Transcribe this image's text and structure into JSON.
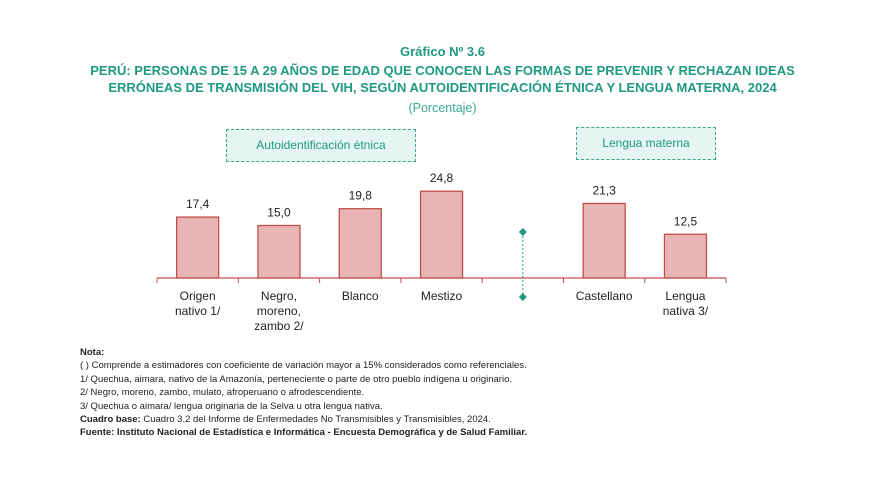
{
  "title": "Gráfico Nº 3.6",
  "subtitle_lines": [
    "PERÚ: PERSONAS DE 15 A 29 AÑOS DE EDAD QUE CONOCEN LAS FORMAS DE PREVENIR Y RECHAZAN IDEAS",
    "ERRÓNEAS DE TRANSMISIÓN DEL VIH, SEGÚN AUTOIDENTIFICACIÓN ÉTNICA Y LENGUA MATERNA, 2024"
  ],
  "unit": "(Porcentaje)",
  "groups": [
    "Autoidentificación étnica",
    "Lengua materna"
  ],
  "chart_data": {
    "type": "bar",
    "title": "Gráfico Nº 3.6",
    "categories": [
      [
        "Origen",
        "nativo 1/"
      ],
      [
        "Negro,",
        "moreno,",
        "zambo 2/"
      ],
      [
        "Blanco"
      ],
      [
        "Mestizo"
      ],
      [
        "Castellano"
      ],
      [
        "Lengua",
        "nativa 3/"
      ]
    ],
    "values": [
      17.4,
      15.0,
      19.8,
      24.8,
      21.3,
      12.5
    ],
    "labels": [
      "17,4",
      "15,0",
      "19,8",
      "24,8",
      "21,3",
      "12,5"
    ],
    "group_of": [
      0,
      0,
      0,
      0,
      1,
      1
    ],
    "bar_color": "#e8b4b4",
    "bar_border": "#c0504d",
    "accent": "#1f9a7e",
    "ylim": [
      0,
      30
    ]
  },
  "notes": {
    "heading": "Nota:",
    "lines": [
      "( ) Comprende a estimadores con coeficiente de variación mayor a 15% considerados como referenciales.",
      "1/ Quechua, aimara, nativo de la Amazonía, perteneciente o parte de otro pueblo indígena u originario.",
      "2/ Negro, moreno, zambo, mulato, afroperuano o afrodescendiente.",
      "3/ Quechua o aimara/ lengua originaria de la Selva u otra lengua nativa."
    ],
    "base_label": "Cuadro base:",
    "base_text": " Cuadro 3.2 del Informe de Enfermedades No Transmisibles y Transmisibles, 2024.",
    "source": "Fuente: Instituto Nacional de Estadística e Informática - Encuesta Demográfica y de Salud Familiar."
  }
}
